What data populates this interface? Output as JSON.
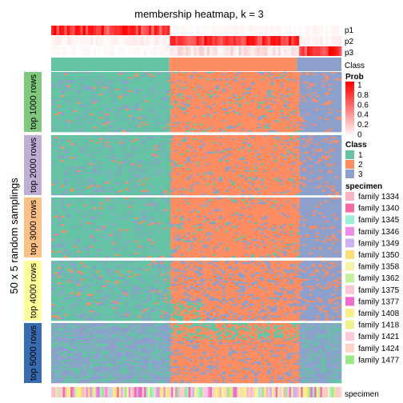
{
  "chart_data": {
    "type": "heatmap",
    "title": "membership heatmap, k = 3",
    "ylabel": "50 x 5 random samplings",
    "annotation_rows": [
      "p1",
      "p2",
      "p3",
      "Class"
    ],
    "bottom_annotation": "specimen",
    "row_blocks": [
      {
        "label": "top 1000 rows",
        "color": "#7fc97f"
      },
      {
        "label": "top 2000 rows",
        "color": "#beaed4"
      },
      {
        "label": "top 3000 rows",
        "color": "#fdc086"
      },
      {
        "label": "top 4000 rows",
        "color": "#ffff99"
      },
      {
        "label": "top 5000 rows",
        "color": "#386cb0"
      }
    ],
    "prob_legend": {
      "title": "Prob",
      "ticks": [
        "1",
        "0.8",
        "0.6",
        "0.4",
        "0.2",
        "0"
      ]
    },
    "class_legend": {
      "title": "Class",
      "entries": [
        {
          "label": "1",
          "color": "#66c2a5"
        },
        {
          "label": "2",
          "color": "#fc8d62"
        },
        {
          "label": "3",
          "color": "#8da0cb"
        }
      ]
    },
    "specimen_legend": {
      "title": "specimen",
      "entries": [
        {
          "label": "family 1334",
          "color": "#fbb4c4"
        },
        {
          "label": "family 1340",
          "color": "#f768a1"
        },
        {
          "label": "family 1345",
          "color": "#99f0d8"
        },
        {
          "label": "family 1346",
          "color": "#ef8de6"
        },
        {
          "label": "family 1349",
          "color": "#cfb0f0"
        },
        {
          "label": "family 1350",
          "color": "#fbe07a"
        },
        {
          "label": "family 1358",
          "color": "#f4f4a8"
        },
        {
          "label": "family 1362",
          "color": "#c8f09a"
        },
        {
          "label": "family 1375",
          "color": "#fcc6d8"
        },
        {
          "label": "family 1377",
          "color": "#f06cd0"
        },
        {
          "label": "family 1408",
          "color": "#f8ef8a"
        },
        {
          "label": "family 1418",
          "color": "#f0f090"
        },
        {
          "label": "family 1421",
          "color": "#fcc8dc"
        },
        {
          "label": "family 1424",
          "color": "#fbd5c8"
        },
        {
          "label": "family 1477",
          "color": "#9ce88c"
        }
      ]
    },
    "sample_class_groups": [
      {
        "class": 1,
        "fraction": 0.407
      },
      {
        "class": 2,
        "fraction": 0.439
      },
      {
        "class": 3,
        "fraction": 0.154
      }
    ]
  }
}
